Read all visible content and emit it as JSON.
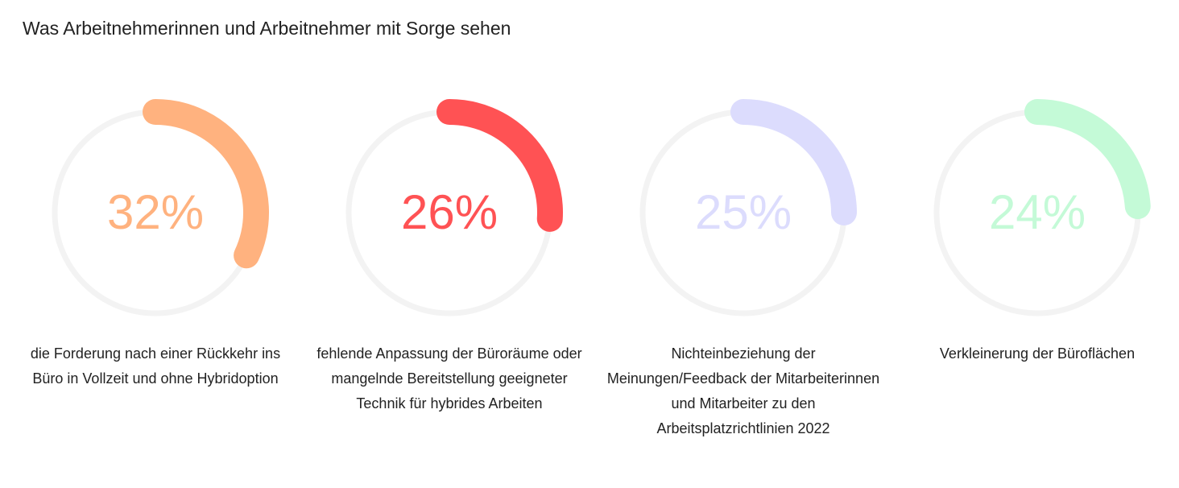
{
  "chart_data": {
    "type": "donut",
    "title": "Was Arbeitnehmerinnen und Arbeitnehmer mit Sorge sehen",
    "unit": "%",
    "items": [
      {
        "value": 32,
        "display": "32%",
        "label": "die Forderung nach einer Rückkehr ins Büro in Vollzeit und ohne Hybridoption",
        "color": "#FFB27F"
      },
      {
        "value": 26,
        "display": "26%",
        "label": "fehlende Anpassung der Büroräume oder mangelnde Bereitstellung geeigneter Technik für hybrides Arbeiten",
        "color": "#FF5254"
      },
      {
        "value": 25,
        "display": "25%",
        "label": "Nichteinbeziehung der Meinungen/Feedback der Mitarbeiterinnen und Mitarbeiter zu den Arbeitsplatzrichtlinien 2022",
        "color": "#DCDCFD"
      },
      {
        "value": 24,
        "display": "24%",
        "label": "Verkleinerung der Büroflächen",
        "color": "#C4FAD7"
      }
    ],
    "track_color": "#F3F3F3"
  }
}
